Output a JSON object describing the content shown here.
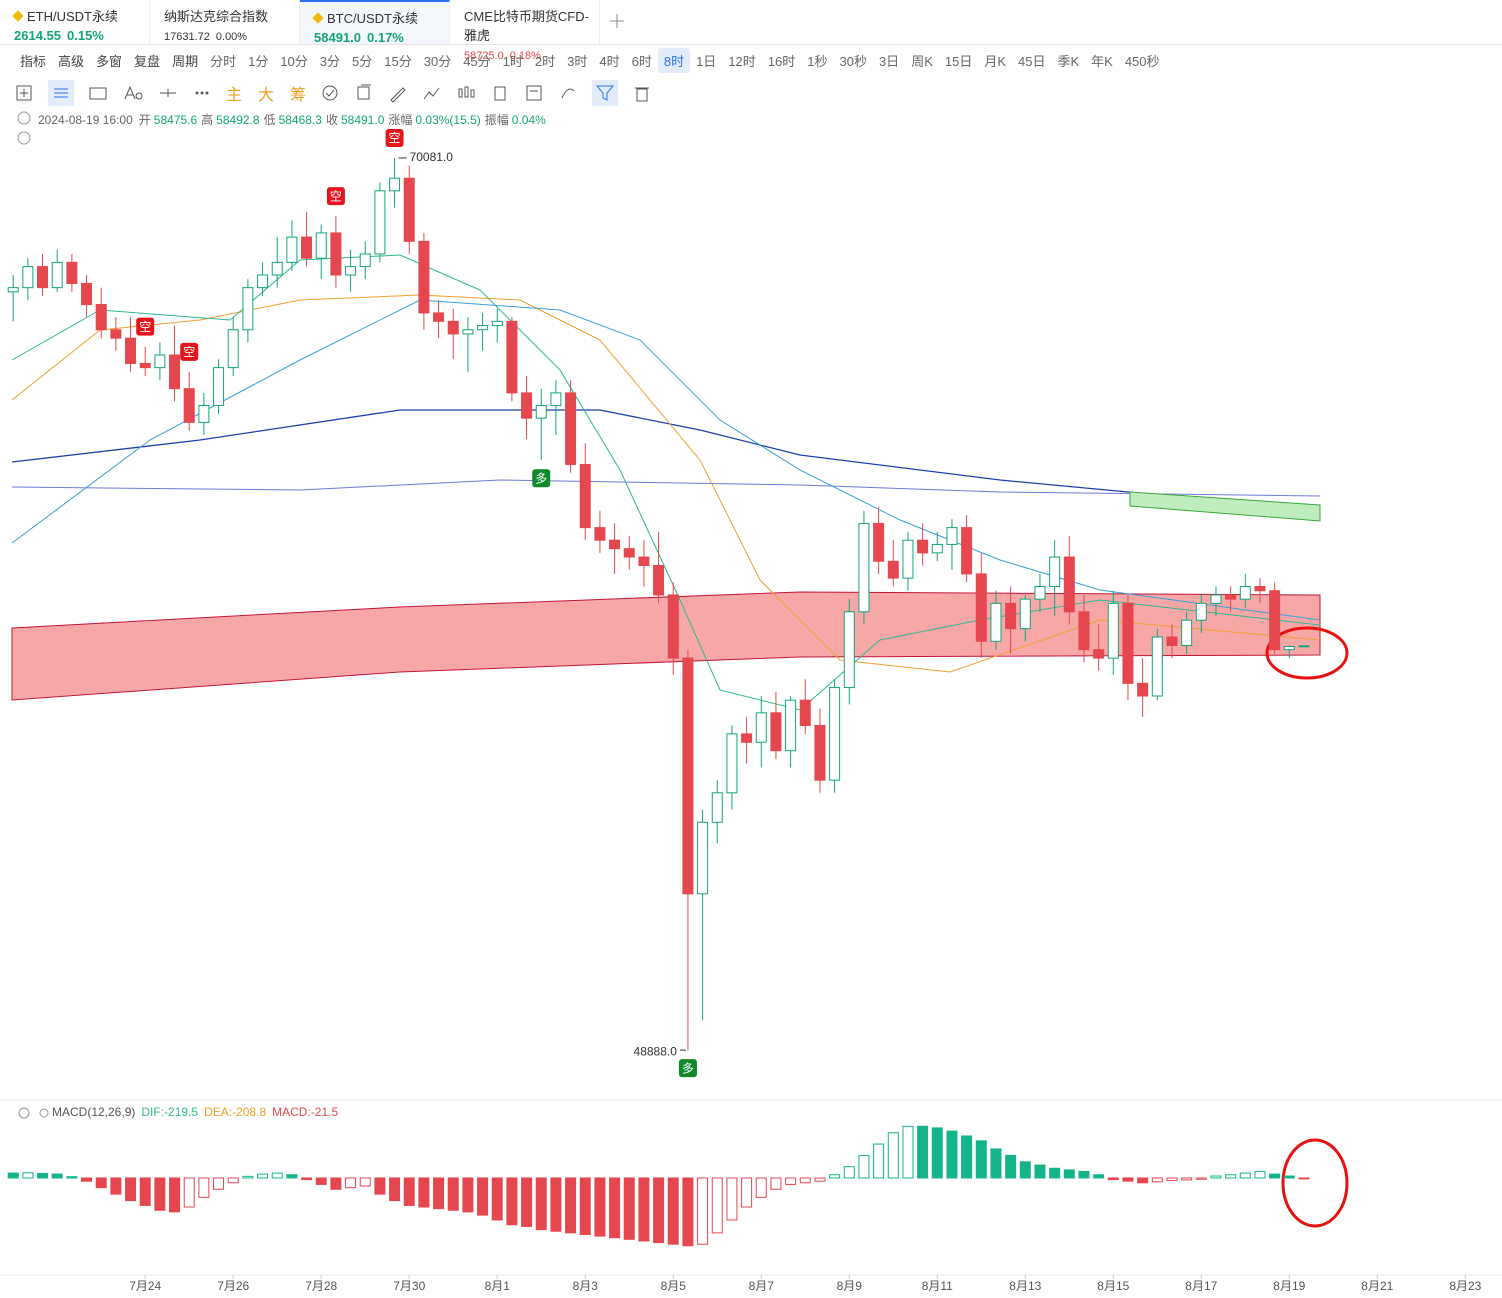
{
  "tabs": [
    {
      "name": "ETH/USDT永续",
      "price": "2614.55",
      "change": "0.15%"
    },
    {
      "name": "纳斯达克综合指数",
      "price": "17631.72",
      "change": "0.00%"
    },
    {
      "name": "BTC/USDT永续",
      "price": "58491.0",
      "change": "0.17%"
    },
    {
      "name": "CME比特币期货CFD-雅虎",
      "price": "58725.0",
      "change": "0.18%"
    }
  ],
  "active_tab": 2,
  "tools": [
    "指标",
    "高级",
    "多窗",
    "复盘",
    "周期"
  ],
  "periods": [
    "分时",
    "1分",
    "10分",
    "3分",
    "5分",
    "15分",
    "30分",
    "45分",
    "1时",
    "2时",
    "3时",
    "4时",
    "6时",
    "8时",
    "1日",
    "12时",
    "16时",
    "1秒",
    "30秒",
    "3日",
    "周K",
    "15日",
    "月K",
    "45日",
    "季K",
    "年K",
    "450秒"
  ],
  "selected_period": 13,
  "chart_tools": [
    "主",
    "大",
    "筹"
  ],
  "info": {
    "time": "2024-08-19 16:00",
    "fields": [
      {
        "label": "开",
        "value": "58475.6"
      },
      {
        "label": "高",
        "value": "58492.8"
      },
      {
        "label": "低",
        "value": "58468.3"
      },
      {
        "label": "收",
        "value": "58491.0"
      },
      {
        "label": "涨幅",
        "value": "0.03%(15.5)"
      },
      {
        "label": "振幅",
        "value": "0.04%"
      }
    ]
  },
  "chart_data": [
    {
      "type": "candlestick",
      "up_color": "#13a57c",
      "down_color": "#e5474f",
      "xlim": [
        -0.9,
        101.5
      ],
      "ylim": [
        47940,
        71220
      ],
      "xticks": [
        {
          "value": 9,
          "label": "7月24"
        },
        {
          "value": 15,
          "label": "7月26"
        },
        {
          "value": 21,
          "label": "7月28"
        },
        {
          "value": 27,
          "label": "7月30"
        },
        {
          "value": 33,
          "label": "8月1"
        },
        {
          "value": 39,
          "label": "8月3"
        },
        {
          "value": 45,
          "label": "8月5"
        },
        {
          "value": 51,
          "label": "8月7"
        },
        {
          "value": 57,
          "label": "8月9"
        },
        {
          "value": 63,
          "label": "8月11"
        },
        {
          "value": 69,
          "label": "8月13"
        },
        {
          "value": 75,
          "label": "8月15"
        },
        {
          "value": 81,
          "label": "8月17"
        },
        {
          "value": 87,
          "label": "8月19"
        },
        {
          "value": 93,
          "label": "8月21"
        },
        {
          "value": 99,
          "label": "8月23"
        }
      ],
      "candles": [
        [
          66900,
          67300,
          66200,
          67000
        ],
        [
          67000,
          67700,
          66700,
          67500
        ],
        [
          67500,
          67800,
          66800,
          67000
        ],
        [
          67000,
          67900,
          66900,
          67600
        ],
        [
          67600,
          67800,
          66900,
          67100
        ],
        [
          67100,
          67300,
          66300,
          66600
        ],
        [
          66600,
          67000,
          65800,
          66000
        ],
        [
          66000,
          66300,
          65500,
          65800
        ],
        [
          65800,
          66300,
          65000,
          65200
        ],
        [
          65200,
          65600,
          64900,
          65100
        ],
        [
          65100,
          65700,
          64800,
          65400
        ],
        [
          65400,
          66100,
          64300,
          64600
        ],
        [
          64600,
          65000,
          63600,
          63800
        ],
        [
          63800,
          64500,
          63500,
          64200
        ],
        [
          64200,
          65300,
          64000,
          65100
        ],
        [
          65100,
          66300,
          64900,
          66000
        ],
        [
          66000,
          67200,
          65700,
          67000
        ],
        [
          67000,
          67600,
          66800,
          67300
        ],
        [
          67300,
          68200,
          67000,
          67600
        ],
        [
          67600,
          68600,
          67400,
          68200
        ],
        [
          68200,
          68800,
          67500,
          67700
        ],
        [
          67700,
          68500,
          67200,
          68300
        ],
        [
          68300,
          68700,
          67000,
          67300
        ],
        [
          67300,
          67900,
          66900,
          67500
        ],
        [
          67500,
          68100,
          67200,
          67800
        ],
        [
          67800,
          69500,
          67600,
          69300
        ],
        [
          69300,
          70081,
          68900,
          69600
        ],
        [
          69600,
          69900,
          67800,
          68100
        ],
        [
          68100,
          68300,
          66000,
          66400
        ],
        [
          66400,
          66700,
          65800,
          66200
        ],
        [
          66200,
          66500,
          65300,
          65900
        ],
        [
          65900,
          66300,
          65000,
          66000
        ],
        [
          66000,
          66400,
          65500,
          66100
        ],
        [
          66100,
          66500,
          65700,
          66200
        ],
        [
          66200,
          66300,
          64300,
          64500
        ],
        [
          64500,
          64900,
          63400,
          63900
        ],
        [
          63900,
          64600,
          62900,
          64200
        ],
        [
          64200,
          64800,
          63500,
          64500
        ],
        [
          64500,
          64800,
          62600,
          62800
        ],
        [
          62800,
          63300,
          61000,
          61300
        ],
        [
          61300,
          61700,
          60700,
          61000
        ],
        [
          61000,
          61400,
          60200,
          60800
        ],
        [
          60800,
          61100,
          60300,
          60600
        ],
        [
          60600,
          61000,
          59900,
          60400
        ],
        [
          60400,
          61200,
          59500,
          59700
        ],
        [
          59700,
          60000,
          57800,
          58200
        ],
        [
          58200,
          58400,
          48888,
          52600
        ],
        [
          52600,
          54600,
          49600,
          54300
        ],
        [
          54300,
          55300,
          53800,
          55000
        ],
        [
          55000,
          56600,
          54600,
          56400
        ],
        [
          56400,
          56800,
          55700,
          56200
        ],
        [
          56200,
          57300,
          55600,
          56900
        ],
        [
          56900,
          57400,
          55800,
          56000
        ],
        [
          56000,
          57300,
          55600,
          57200
        ],
        [
          57200,
          57700,
          56400,
          56600
        ],
        [
          56600,
          57000,
          55000,
          55300
        ],
        [
          55300,
          57700,
          55000,
          57500
        ],
        [
          57500,
          59600,
          57100,
          59300
        ],
        [
          59300,
          61700,
          59000,
          61400
        ],
        [
          61400,
          61800,
          60200,
          60500
        ],
        [
          60500,
          61000,
          59900,
          60100
        ],
        [
          60100,
          61200,
          59800,
          61000
        ],
        [
          61000,
          61400,
          60400,
          60700
        ],
        [
          60700,
          61200,
          60500,
          60900
        ],
        [
          60900,
          61500,
          60300,
          61300
        ],
        [
          61300,
          61600,
          60000,
          60200
        ],
        [
          60200,
          60700,
          58200,
          58600
        ],
        [
          58600,
          59800,
          58400,
          59500
        ],
        [
          59500,
          59900,
          58300,
          58900
        ],
        [
          58900,
          59700,
          58600,
          59600
        ],
        [
          59600,
          60200,
          59300,
          59900
        ],
        [
          59900,
          61000,
          59200,
          60600
        ],
        [
          60600,
          61100,
          59000,
          59300
        ],
        [
          59300,
          59700,
          58100,
          58400
        ],
        [
          58400,
          59000,
          57900,
          58200
        ],
        [
          58200,
          59800,
          57800,
          59500
        ],
        [
          59500,
          59700,
          57200,
          57600
        ],
        [
          57600,
          58200,
          56800,
          57300
        ],
        [
          57300,
          58900,
          57200,
          58700
        ],
        [
          58700,
          59000,
          58200,
          58500
        ],
        [
          58500,
          59300,
          58300,
          59100
        ],
        [
          59100,
          59700,
          58800,
          59500
        ],
        [
          59500,
          59900,
          59200,
          59700
        ],
        [
          59700,
          59900,
          59300,
          59600
        ],
        [
          59600,
          60200,
          59400,
          59900
        ],
        [
          59900,
          60100,
          59500,
          59800
        ],
        [
          59800,
          60000,
          58300,
          58400
        ],
        [
          58400,
          58500,
          58200,
          58475.6
        ],
        [
          58475.6,
          58492.8,
          58468.3,
          58491.0
        ]
      ],
      "annotations": [
        {
          "label": "70081.0",
          "x": 26,
          "y": 70081
        },
        {
          "label": "48888.0",
          "x": 46,
          "y": 48888
        }
      ],
      "signals": [
        {
          "label": "空",
          "x": 26,
          "side": "sell"
        },
        {
          "label": "空",
          "x": 22,
          "side": "sell"
        },
        {
          "label": "空",
          "x": 9,
          "side": "sell"
        },
        {
          "label": "空",
          "x": 12,
          "side": "sell"
        },
        {
          "label": "多",
          "x": 36,
          "side": "buy"
        },
        {
          "label": "多",
          "x": 46,
          "side": "buy"
        }
      ]
    },
    {
      "type": "bar",
      "title": "MACD(12,26,9)",
      "dif": "DIF:-219.5",
      "dea": "DEA:-208.8",
      "macd": "MACD:-21.5",
      "up_color": "#13b48a",
      "down_color": "#e5474f",
      "ylim": [
        -2850,
        1950
      ],
      "values": [
        150,
        160,
        140,
        120,
        40,
        -100,
        -300,
        -500,
        -700,
        -850,
        -1000,
        -1050,
        -900,
        -600,
        -350,
        -150,
        50,
        120,
        150,
        100,
        -50,
        -200,
        -350,
        -300,
        -250,
        -500,
        -700,
        -850,
        -900,
        -950,
        -1000,
        -1050,
        -1150,
        -1300,
        -1450,
        -1500,
        -1600,
        -1650,
        -1700,
        -1750,
        -1800,
        -1850,
        -1900,
        -1950,
        -2000,
        -2050,
        -2100,
        -2050,
        -1700,
        -1300,
        -900,
        -600,
        -350,
        -200,
        -150,
        -100,
        100,
        350,
        700,
        1050,
        1400,
        1600,
        1600,
        1550,
        1450,
        1300,
        1150,
        900,
        700,
        500,
        400,
        300,
        250,
        200,
        100,
        -50,
        -100,
        -150,
        -120,
        -80,
        -60,
        -40,
        60,
        100,
        150,
        200,
        120,
        60,
        -21.5
      ]
    }
  ]
}
